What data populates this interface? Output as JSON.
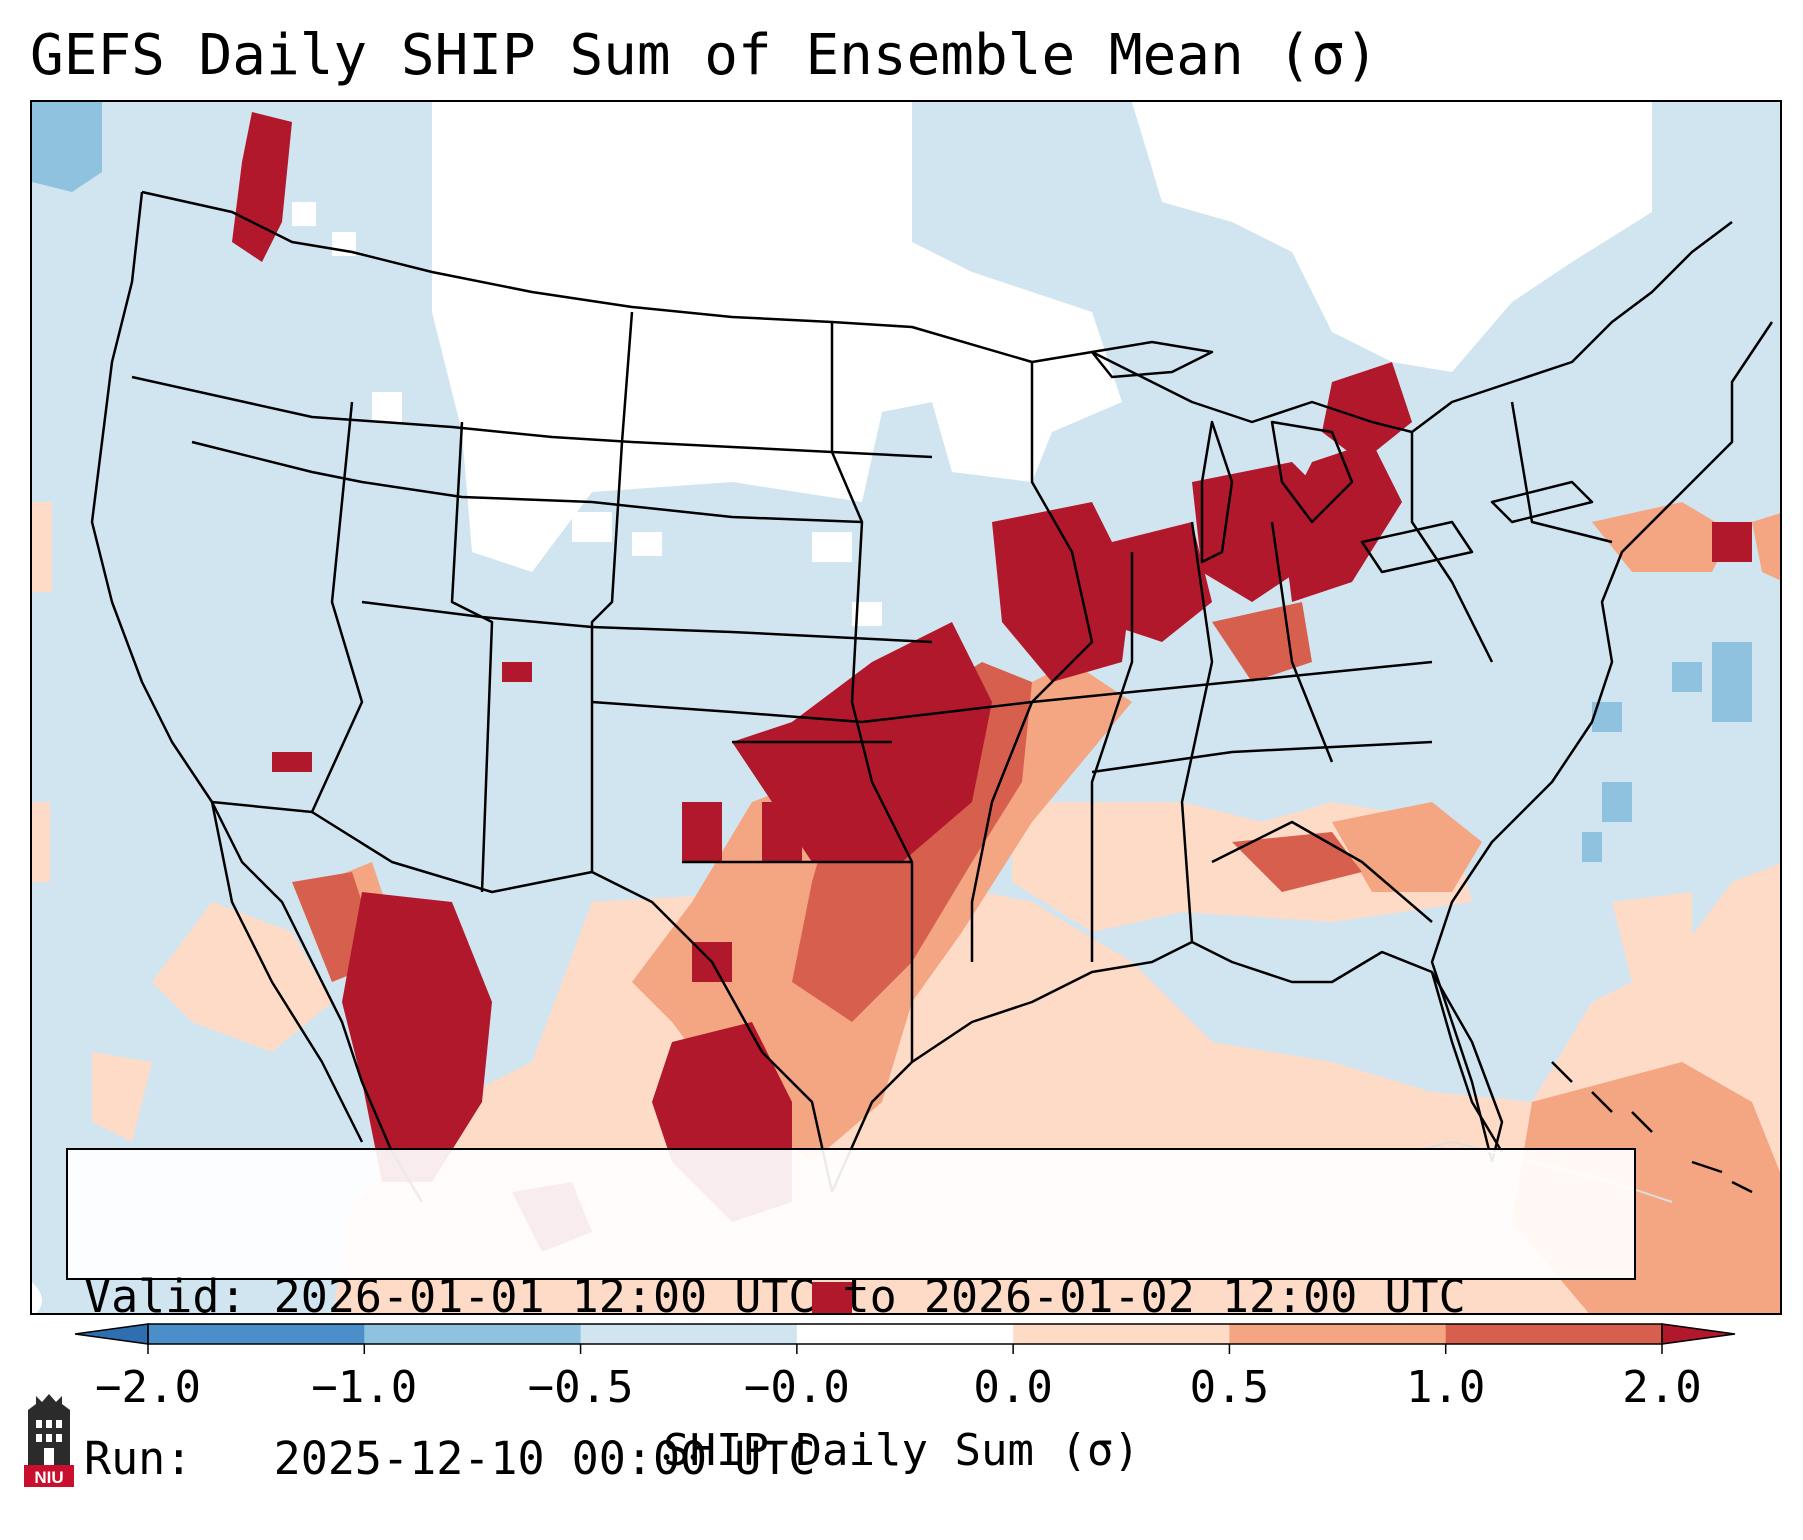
{
  "title": "GEFS Daily SHIP Sum of Ensemble Mean (σ)",
  "info": {
    "valid_label": "Valid:",
    "valid_value": "2026-01-01 12:00 UTC to 2026-01-02 12:00 UTC",
    "run_label": "Run:",
    "run_value": "2025-12-10 00:00 UTC"
  },
  "colorbar": {
    "label": "SHIP Daily Sum (σ)",
    "ticks": [
      "−2.0",
      "−1.0",
      "−0.5",
      "−0.0",
      "0.0",
      "0.5",
      "1.0",
      "2.0"
    ],
    "colors": [
      "#4a8fc9",
      "#8fc2df",
      "#d1e5f0",
      "#ffffff",
      "#fddbc7",
      "#f4a582",
      "#d6604d",
      "#b2182b"
    ]
  },
  "legend_levels": [
    {
      "range": "< -1.0",
      "color": "#4a8fc9"
    },
    {
      "range": "-1.0 to -0.5",
      "color": "#8fc2df"
    },
    {
      "range": "-0.5 to 0.0",
      "color": "#d1e5f0"
    },
    {
      "range": "0.0 (neutral)",
      "color": "#ffffff"
    },
    {
      "range": "0.0 to 0.5",
      "color": "#fddbc7"
    },
    {
      "range": "0.5 to 1.0",
      "color": "#f4a582"
    },
    {
      "range": "1.0 to 2.0",
      "color": "#d6604d"
    },
    {
      "range": "> 2.0",
      "color": "#b2182b"
    }
  ],
  "logo": {
    "text": "NIU"
  }
}
